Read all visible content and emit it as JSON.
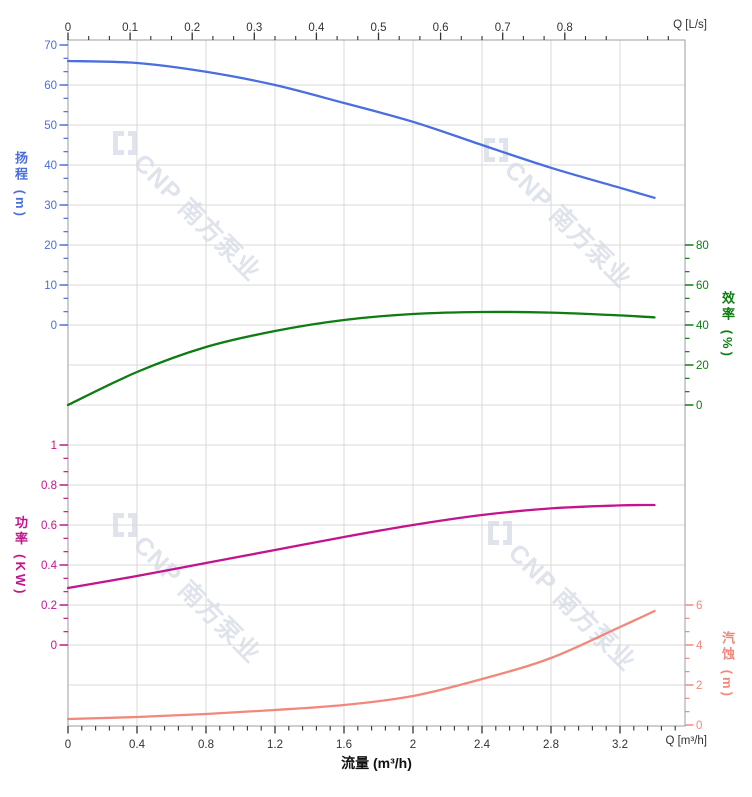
{
  "watermark": {
    "text": "CNP 南方泵业",
    "color": "#dfe3eb"
  },
  "chart_data": {
    "type": "line",
    "title": "",
    "x_m3h": [
      0,
      0.4,
      0.8,
      1.2,
      1.6,
      2.0,
      2.4,
      2.8,
      3.2,
      3.4
    ],
    "series": [
      {
        "name": "head",
        "label": "扬程",
        "unit": "m",
        "color": "#4a6fdd",
        "values": [
          66.0,
          65.5,
          63.3,
          60.0,
          55.5,
          50.8,
          45.0,
          39.3,
          34.3,
          31.8
        ]
      },
      {
        "name": "efficiency",
        "label": "效率",
        "unit": "%",
        "color": "#0d7c12",
        "values": [
          0,
          16.5,
          29.0,
          37.0,
          42.5,
          45.5,
          46.5,
          46.2,
          44.8,
          43.8
        ]
      },
      {
        "name": "power",
        "label": "功率",
        "unit": "KW",
        "color": "#c3148e",
        "values": [
          0.285,
          0.345,
          0.41,
          0.475,
          0.54,
          0.6,
          0.65,
          0.683,
          0.698,
          0.7
        ]
      },
      {
        "name": "npsh",
        "label": "汽蚀",
        "unit": "m",
        "color": "#f2887b",
        "values": [
          0.3,
          0.4,
          0.55,
          0.75,
          1.0,
          1.45,
          2.3,
          3.35,
          4.9,
          5.7
        ]
      }
    ],
    "axes": {
      "bottom": {
        "title": "流量 (m³/h)",
        "unit_label": "Q [m³/h]",
        "color": "#333333",
        "ticks": [
          "0",
          "0.4",
          "0.8",
          "1.2",
          "1.6",
          "2",
          "2.4",
          "2.8",
          "3.2"
        ],
        "range": [
          0,
          3.58
        ]
      },
      "top": {
        "unit_label": "Q [L/s]",
        "color": "#333333",
        "ticks": [
          "0",
          "0.1",
          "0.2",
          "0.3",
          "0.4",
          "0.5",
          "0.6",
          "0.7",
          "0.8"
        ],
        "range": [
          0,
          0.99
        ]
      },
      "head": {
        "title": "扬程 (m)",
        "color": "#4a6fdd",
        "ticks": [
          "70",
          "60",
          "50",
          "40",
          "30",
          "20",
          "10",
          "0"
        ],
        "range": [
          0,
          70
        ]
      },
      "efficiency": {
        "title": "效率 (%)",
        "color": "#0d7c12",
        "ticks": [
          "80",
          "60",
          "40",
          "20",
          "0"
        ],
        "range": [
          0,
          80
        ]
      },
      "power": {
        "title": "功率 (KW)",
        "color": "#c3148e",
        "ticks": [
          "1",
          "0.8",
          "0.6",
          "0.4",
          "0.2",
          "0"
        ],
        "range": [
          0,
          1
        ]
      },
      "npsh": {
        "title": "汽蚀 (m)",
        "color": "#f2887b",
        "ticks": [
          "6",
          "4",
          "2",
          "0"
        ],
        "range": [
          0,
          6
        ]
      }
    },
    "grid": true,
    "grid_color": "#d9d9d9",
    "border_color": "#b3b3b3"
  }
}
